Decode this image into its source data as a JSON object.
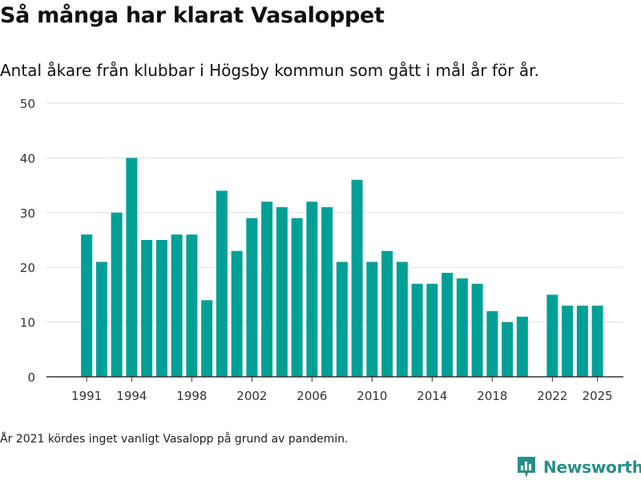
{
  "header": {
    "title": "Så många har klarat Vasaloppet",
    "subtitle": "Antal åkare från klubbar i Högsby kommun som gått i mål år för år."
  },
  "footnote": "År 2021 kördes inget vanligt Vasalopp på grund av pandemin.",
  "brand": {
    "name": "Newsworthy",
    "icon": "newsworthy-logo-icon",
    "color": "#2a8f88"
  },
  "colors": {
    "bar": "#00a096",
    "grid": "#e0e0e0",
    "axis": "#333333",
    "tick_text": "#333333"
  },
  "chart_data": {
    "type": "bar",
    "title": "Så många har klarat Vasaloppet",
    "xlabel": "",
    "ylabel": "",
    "ylim": [
      0,
      50
    ],
    "y_ticks": [
      0,
      10,
      20,
      30,
      40,
      50
    ],
    "x_ticks": [
      1991,
      1994,
      1998,
      2002,
      2006,
      2010,
      2014,
      2018,
      2022,
      2025
    ],
    "grid": true,
    "series": [
      {
        "name": "Antal åkare",
        "x": [
          1991,
          1992,
          1993,
          1994,
          1995,
          1996,
          1997,
          1998,
          1999,
          2000,
          2001,
          2002,
          2003,
          2004,
          2005,
          2006,
          2007,
          2008,
          2009,
          2010,
          2011,
          2012,
          2013,
          2014,
          2015,
          2016,
          2017,
          2018,
          2019,
          2020,
          2022,
          2023,
          2024,
          2025
        ],
        "values": [
          26,
          21,
          30,
          40,
          25,
          25,
          26,
          26,
          14,
          34,
          23,
          29,
          32,
          31,
          29,
          32,
          31,
          21,
          36,
          21,
          23,
          21,
          17,
          17,
          19,
          18,
          17,
          12,
          10,
          11,
          15,
          13,
          13,
          13
        ]
      }
    ]
  }
}
